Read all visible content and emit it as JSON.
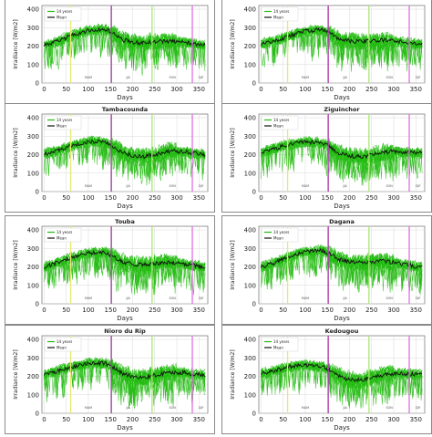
{
  "chart_data": [
    {
      "type": "line",
      "title": "",
      "xlabel": "Days",
      "ylabel": "Irradiance [W/m2]",
      "xlim": [
        -5,
        370
      ],
      "ylim": [
        0,
        420
      ],
      "x_ticks": [
        0,
        50,
        100,
        150,
        200,
        250,
        300,
        350
      ],
      "y_ticks": [
        0,
        100,
        200,
        300,
        400
      ],
      "legend": [
        "14 years",
        "Mean"
      ],
      "legend_position": "top-left",
      "mean_points": [
        [
          0,
          205
        ],
        [
          30,
          225
        ],
        [
          60,
          255
        ],
        [
          100,
          285
        ],
        [
          140,
          290
        ],
        [
          160,
          265
        ],
        [
          175,
          235
        ],
        [
          200,
          220
        ],
        [
          225,
          218
        ],
        [
          250,
          222
        ],
        [
          275,
          228
        ],
        [
          300,
          225
        ],
        [
          320,
          218
        ],
        [
          345,
          210
        ],
        [
          365,
          205
        ]
      ],
      "vlines": [
        {
          "x": 60,
          "color": "#e8e870"
        },
        {
          "x": 152,
          "color": "#b040b0"
        },
        {
          "x": 244,
          "color": "#a8e870"
        },
        {
          "x": 335,
          "color": "#e070e0"
        }
      ],
      "season_labels": [
        {
          "x": 100,
          "text": "MAM"
        },
        {
          "x": 190,
          "text": "JJA"
        },
        {
          "x": 290,
          "text": "SON"
        },
        {
          "x": 355,
          "text": "DJF"
        }
      ]
    },
    {
      "type": "line",
      "title": "",
      "xlabel": "Days",
      "ylabel": "Irradiance [W/m2]",
      "xlim": [
        -5,
        370
      ],
      "ylim": [
        0,
        420
      ],
      "x_ticks": [
        0,
        50,
        100,
        150,
        200,
        250,
        300,
        350
      ],
      "y_ticks": [
        0,
        100,
        200,
        300,
        400
      ],
      "legend": [
        "14 years",
        "Mean"
      ],
      "legend_position": "top-left",
      "mean_points": [
        [
          0,
          210
        ],
        [
          30,
          228
        ],
        [
          60,
          252
        ],
        [
          100,
          282
        ],
        [
          140,
          288
        ],
        [
          160,
          262
        ],
        [
          175,
          238
        ],
        [
          200,
          228
        ],
        [
          225,
          225
        ],
        [
          250,
          228
        ],
        [
          275,
          232
        ],
        [
          300,
          228
        ],
        [
          320,
          222
        ],
        [
          345,
          212
        ],
        [
          365,
          208
        ]
      ],
      "vlines": [
        {
          "x": 60,
          "color": "#e8e870"
        },
        {
          "x": 152,
          "color": "#b040b0"
        },
        {
          "x": 244,
          "color": "#a8e870"
        },
        {
          "x": 335,
          "color": "#e070e0"
        }
      ],
      "season_labels": [
        {
          "x": 100,
          "text": "MAM"
        },
        {
          "x": 190,
          "text": "JJA"
        },
        {
          "x": 290,
          "text": "SON"
        },
        {
          "x": 355,
          "text": "DJF"
        }
      ]
    },
    {
      "type": "line",
      "title": "Tambacounda",
      "xlabel": "Days",
      "ylabel": "Irradiance [W/m2]",
      "xlim": [
        -5,
        370
      ],
      "ylim": [
        0,
        420
      ],
      "x_ticks": [
        0,
        50,
        100,
        150,
        200,
        250,
        300,
        350
      ],
      "y_ticks": [
        0,
        100,
        200,
        300,
        400
      ],
      "legend": [
        "14 years",
        "Mean"
      ],
      "legend_position": "top-left",
      "mean_points": [
        [
          0,
          205
        ],
        [
          30,
          220
        ],
        [
          60,
          245
        ],
        [
          100,
          270
        ],
        [
          140,
          268
        ],
        [
          160,
          240
        ],
        [
          175,
          215
        ],
        [
          200,
          195
        ],
        [
          225,
          190
        ],
        [
          250,
          200
        ],
        [
          275,
          215
        ],
        [
          300,
          220
        ],
        [
          320,
          215
        ],
        [
          345,
          205
        ],
        [
          365,
          200
        ]
      ],
      "vlines": [
        {
          "x": 60,
          "color": "#e8e870"
        },
        {
          "x": 152,
          "color": "#b040b0"
        },
        {
          "x": 244,
          "color": "#a8e870"
        },
        {
          "x": 335,
          "color": "#e070e0"
        }
      ],
      "season_labels": [
        {
          "x": 100,
          "text": "MAM"
        },
        {
          "x": 190,
          "text": "JJA"
        },
        {
          "x": 290,
          "text": "SON"
        },
        {
          "x": 355,
          "text": "DJF"
        }
      ]
    },
    {
      "type": "line",
      "title": "Ziguinchor",
      "xlabel": "Days",
      "ylabel": "Irradiance [W/m2]",
      "xlim": [
        -5,
        370
      ],
      "ylim": [
        0,
        420
      ],
      "x_ticks": [
        0,
        50,
        100,
        150,
        200,
        250,
        300,
        350
      ],
      "y_ticks": [
        0,
        100,
        200,
        300,
        400
      ],
      "legend": [
        "14 years",
        "Mean"
      ],
      "legend_position": "top-left",
      "mean_points": [
        [
          0,
          215
        ],
        [
          30,
          232
        ],
        [
          60,
          255
        ],
        [
          100,
          270
        ],
        [
          140,
          262
        ],
        [
          160,
          235
        ],
        [
          175,
          210
        ],
        [
          200,
          192
        ],
        [
          225,
          188
        ],
        [
          250,
          198
        ],
        [
          275,
          212
        ],
        [
          300,
          218
        ],
        [
          320,
          215
        ],
        [
          345,
          210
        ],
        [
          365,
          208
        ]
      ],
      "vlines": [
        {
          "x": 60,
          "color": "#e8e870"
        },
        {
          "x": 152,
          "color": "#b040b0"
        },
        {
          "x": 244,
          "color": "#a8e870"
        },
        {
          "x": 335,
          "color": "#e070e0"
        }
      ],
      "season_labels": [
        {
          "x": 100,
          "text": "MAM"
        },
        {
          "x": 190,
          "text": "JJA"
        },
        {
          "x": 290,
          "text": "SON"
        },
        {
          "x": 355,
          "text": "DJF"
        }
      ]
    },
    {
      "type": "line",
      "title": "Touba",
      "xlabel": "Days",
      "ylabel": "Irradiance [W/m2]",
      "xlim": [
        -5,
        370
      ],
      "ylim": [
        0,
        420
      ],
      "x_ticks": [
        0,
        50,
        100,
        150,
        200,
        250,
        300,
        350
      ],
      "y_ticks": [
        0,
        100,
        200,
        300,
        400
      ],
      "legend": [
        "14 years",
        "Mean"
      ],
      "legend_position": "top-left",
      "mean_points": [
        [
          0,
          200
        ],
        [
          30,
          222
        ],
        [
          60,
          250
        ],
        [
          100,
          275
        ],
        [
          140,
          278
        ],
        [
          160,
          252
        ],
        [
          175,
          228
        ],
        [
          200,
          215
        ],
        [
          225,
          212
        ],
        [
          250,
          218
        ],
        [
          275,
          225
        ],
        [
          300,
          222
        ],
        [
          320,
          212
        ],
        [
          345,
          205
        ],
        [
          365,
          200
        ]
      ],
      "vlines": [
        {
          "x": 60,
          "color": "#e8e870"
        },
        {
          "x": 152,
          "color": "#b040b0"
        },
        {
          "x": 244,
          "color": "#a8e870"
        },
        {
          "x": 335,
          "color": "#e070e0"
        }
      ],
      "season_labels": [
        {
          "x": 100,
          "text": "MAM"
        },
        {
          "x": 190,
          "text": "JJA"
        },
        {
          "x": 290,
          "text": "SON"
        },
        {
          "x": 355,
          "text": "DJF"
        }
      ]
    },
    {
      "type": "line",
      "title": "Dagana",
      "xlabel": "Days",
      "ylabel": "Irradiance [W/m2]",
      "xlim": [
        -5,
        370
      ],
      "ylim": [
        0,
        420
      ],
      "x_ticks": [
        0,
        50,
        100,
        150,
        200,
        250,
        300,
        350
      ],
      "y_ticks": [
        0,
        100,
        200,
        300,
        400
      ],
      "legend": [
        "14 years",
        "Mean"
      ],
      "legend_position": "top-left",
      "mean_points": [
        [
          0,
          200
        ],
        [
          30,
          222
        ],
        [
          60,
          252
        ],
        [
          100,
          282
        ],
        [
          140,
          288
        ],
        [
          160,
          265
        ],
        [
          175,
          240
        ],
        [
          200,
          228
        ],
        [
          225,
          225
        ],
        [
          250,
          228
        ],
        [
          275,
          230
        ],
        [
          300,
          225
        ],
        [
          320,
          215
        ],
        [
          345,
          205
        ],
        [
          365,
          200
        ]
      ],
      "vlines": [
        {
          "x": 60,
          "color": "#e8e870"
        },
        {
          "x": 152,
          "color": "#b040b0"
        },
        {
          "x": 244,
          "color": "#a8e870"
        },
        {
          "x": 335,
          "color": "#e070e0"
        }
      ],
      "season_labels": [
        {
          "x": 100,
          "text": "MAM"
        },
        {
          "x": 190,
          "text": "JJA"
        },
        {
          "x": 290,
          "text": "SON"
        },
        {
          "x": 355,
          "text": "DJF"
        }
      ]
    },
    {
      "type": "line",
      "title": "Nioro du Rip",
      "xlabel": "Days",
      "ylabel": "Irradiance [W/m2]",
      "xlim": [
        -5,
        370
      ],
      "ylim": [
        0,
        420
      ],
      "x_ticks": [
        0,
        50,
        100,
        150,
        200,
        250,
        300,
        350
      ],
      "y_ticks": [
        0,
        100,
        200,
        300,
        400
      ],
      "legend": [
        "14 years",
        "Mean"
      ],
      "legend_position": "top-left",
      "mean_points": [
        [
          0,
          210
        ],
        [
          30,
          228
        ],
        [
          60,
          250
        ],
        [
          100,
          272
        ],
        [
          140,
          270
        ],
        [
          160,
          245
        ],
        [
          175,
          218
        ],
        [
          200,
          198
        ],
        [
          225,
          195
        ],
        [
          250,
          205
        ],
        [
          275,
          218
        ],
        [
          300,
          222
        ],
        [
          320,
          218
        ],
        [
          345,
          212
        ],
        [
          365,
          208
        ]
      ],
      "vlines": [
        {
          "x": 60,
          "color": "#e8e870"
        },
        {
          "x": 152,
          "color": "#b040b0"
        },
        {
          "x": 244,
          "color": "#a8e870"
        },
        {
          "x": 335,
          "color": "#e070e0"
        }
      ],
      "season_labels": [
        {
          "x": 100,
          "text": "MAM"
        },
        {
          "x": 190,
          "text": "JJA"
        },
        {
          "x": 290,
          "text": "SON"
        },
        {
          "x": 355,
          "text": "DJF"
        }
      ]
    },
    {
      "type": "line",
      "title": "Kedougou",
      "xlabel": "Days",
      "ylabel": "Irradiance [W/m2]",
      "xlim": [
        -5,
        370
      ],
      "ylim": [
        0,
        420
      ],
      "x_ticks": [
        0,
        50,
        100,
        150,
        200,
        250,
        300,
        350
      ],
      "y_ticks": [
        0,
        100,
        200,
        300,
        400
      ],
      "legend": [
        "14 years",
        "Mean"
      ],
      "legend_position": "top-left",
      "mean_points": [
        [
          0,
          215
        ],
        [
          30,
          230
        ],
        [
          60,
          250
        ],
        [
          100,
          262
        ],
        [
          140,
          250
        ],
        [
          160,
          225
        ],
        [
          175,
          200
        ],
        [
          200,
          182
        ],
        [
          225,
          180
        ],
        [
          250,
          192
        ],
        [
          275,
          208
        ],
        [
          300,
          215
        ],
        [
          320,
          215
        ],
        [
          345,
          212
        ],
        [
          365,
          210
        ]
      ],
      "vlines": [
        {
          "x": 60,
          "color": "#e8e870"
        },
        {
          "x": 152,
          "color": "#b040b0"
        },
        {
          "x": 244,
          "color": "#a8e870"
        },
        {
          "x": 335,
          "color": "#e070e0"
        }
      ],
      "season_labels": [
        {
          "x": 100,
          "text": "MAM"
        },
        {
          "x": 190,
          "text": "JJA"
        },
        {
          "x": 290,
          "text": "SON"
        },
        {
          "x": 355,
          "text": "DJF"
        }
      ]
    }
  ],
  "colors": {
    "years_line": "#22bb11",
    "mean_line": "#111111",
    "grid": "#d8d8d8",
    "axis_text": "#222222"
  }
}
